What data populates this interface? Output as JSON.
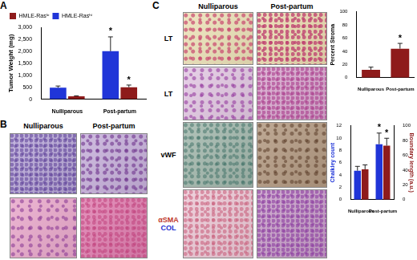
{
  "chart_data": [
    {
      "type": "bar",
      "categories": [
        "Nulliparous",
        "Post-partum"
      ],
      "series": [
        {
          "name": "HMLE-Rasʰⁱ",
          "color": "#2035d8",
          "values": [
            480,
            2000
          ],
          "errors": [
            70,
            600
          ],
          "significance": [
            null,
            "*"
          ]
        },
        {
          "name": "HMLE-Rasˡᵒ",
          "color": "#8e1b1b",
          "values": [
            120,
            500
          ],
          "errors": [
            20,
            90
          ],
          "significance": [
            null,
            "*"
          ]
        }
      ],
      "ylabel": "Tumor Weight (mg)",
      "ylim": [
        0,
        3000
      ],
      "yticks": [
        0,
        500,
        1000,
        1500,
        2000,
        2500,
        3000
      ],
      "grid": false,
      "legend": "top-left"
    },
    {
      "type": "bar",
      "categories": [
        "Nulliparous",
        "Post-partum"
      ],
      "values": [
        12,
        44
      ],
      "errors": [
        4,
        8
      ],
      "significance": [
        null,
        "*"
      ],
      "color": "#8e1b1b",
      "ylabel": "Percent Stroma",
      "ylim": [
        0,
        100
      ],
      "yticks": [
        0,
        20,
        40,
        60,
        80,
        100
      ],
      "grid": false
    },
    {
      "type": "bar",
      "categories": [
        "Nulliparous",
        "Post-partum"
      ],
      "series": [
        {
          "name": "Chalkley count",
          "color": "#2035d8",
          "values": [
            4.7,
            9
          ],
          "errors": [
            0.7,
            1.8
          ],
          "significance": [
            null,
            "*"
          ]
        },
        {
          "name": "Boundary length (a.u.)",
          "color": "#8e1b1b",
          "axis": "y2",
          "values": [
            41,
            73
          ],
          "errors": [
            6,
            10
          ],
          "significance": [
            null,
            "*"
          ]
        }
      ],
      "ylabel": "Chalkley count",
      "y2label": "Boundary length (a.u.)",
      "ylim": [
        0,
        12
      ],
      "yticks": [
        0,
        2,
        4,
        6,
        8,
        10,
        12
      ],
      "y2lim": [
        0,
        100
      ],
      "y2ticks": [
        0,
        20,
        40,
        60,
        80,
        100
      ],
      "grid": false
    }
  ],
  "figure": {
    "panel_labels": [
      "A",
      "B",
      "C"
    ],
    "B": {
      "columns": [
        "Nulliparous",
        "Post-partum"
      ],
      "rows": 2
    },
    "C": {
      "columns": [
        "Nulliparous",
        "Post-partum"
      ],
      "rows": [
        {
          "lines": [
            {
              "text": "LT"
            }
          ]
        },
        {
          "lines": [
            {
              "text": "LT"
            }
          ]
        },
        {
          "lines": [
            {
              "text": "vWF"
            }
          ]
        },
        {
          "lines": [
            {
              "text": "αSMA",
              "color": "#c0392b"
            },
            {
              "text": "COL",
              "color": "#1f2fd0"
            }
          ]
        }
      ]
    }
  }
}
